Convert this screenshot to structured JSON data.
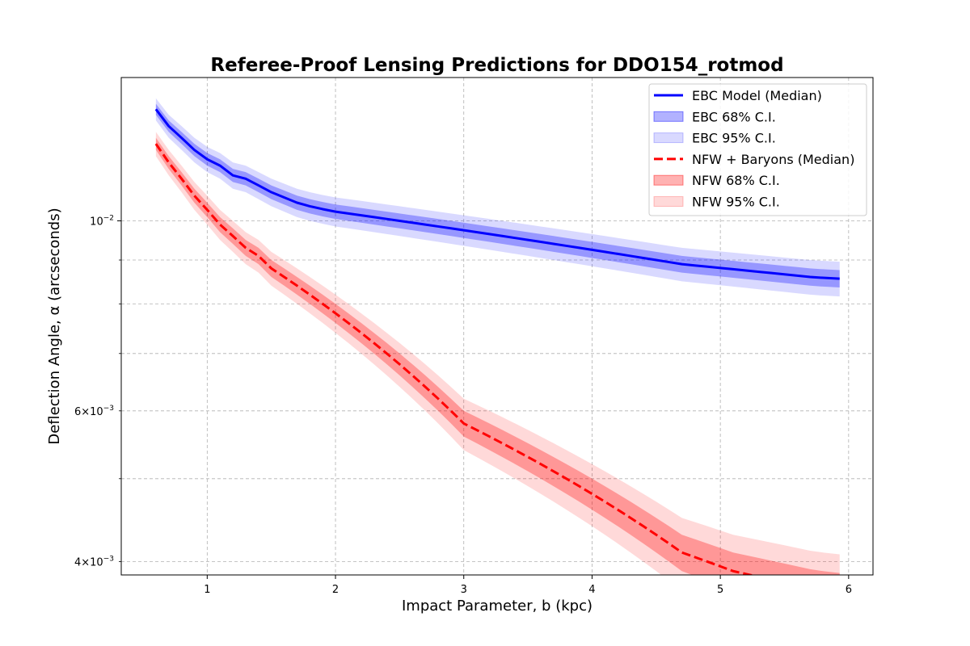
{
  "chart_data": {
    "type": "line",
    "title": "Referee-Proof Lensing Predictions for DDO154_rotmod",
    "xlabel": "Impact Parameter, b (kpc)",
    "ylabel": "Deflection Angle, α (arcseconds)",
    "xlim": [
      0.33,
      6.19
    ],
    "ylim": [
      0.00386,
      0.0147
    ],
    "yscale": "log",
    "grid": true,
    "legend_position": "upper right",
    "x_ticks": [
      1,
      2,
      3,
      4,
      5,
      6
    ],
    "x_tick_labels": [
      "1",
      "2",
      "3",
      "4",
      "5",
      "6"
    ],
    "y_major_ticks": [
      0.01
    ],
    "y_major_labels": [
      "10"
    ],
    "y_major_label_exponent": "−2",
    "y_minor_ticks": [
      0.004,
      0.005,
      0.006,
      0.007,
      0.008,
      0.009
    ],
    "y_minor_labels": [
      "4",
      "",
      "6",
      "",
      "",
      ""
    ],
    "y_minor_label_multiplier": "×10",
    "y_minor_label_exponent": "−3",
    "x": [
      0.6,
      0.7,
      0.8,
      0.9,
      1.0,
      1.1,
      1.2,
      1.3,
      1.4,
      1.5,
      1.6,
      1.7,
      1.8,
      1.9,
      2.0,
      2.1,
      2.2,
      2.3,
      2.4,
      2.5,
      2.6,
      2.7,
      2.8,
      2.9,
      3.0,
      3.1,
      3.2,
      3.3,
      3.4,
      3.5,
      3.6,
      3.7,
      3.8,
      3.9,
      4.0,
      4.1,
      4.2,
      4.3,
      4.4,
      4.5,
      4.6,
      4.7,
      4.8,
      4.9,
      5.0,
      5.1,
      5.2,
      5.3,
      5.4,
      5.5,
      5.6,
      5.7,
      5.8,
      5.93
    ],
    "series": [
      {
        "name": "EBC Model (Median)",
        "color": "#0000ff",
        "line_style": "solid",
        "band68_label": "EBC 68% C.I.",
        "band95_label": "EBC 95% C.I.",
        "band68_color": "#0000ff",
        "band95_color": "#0000ff",
        "median": [
          0.0135,
          0.0129,
          0.0125,
          0.0121,
          0.0118,
          0.0116,
          0.0113,
          0.0112,
          0.011,
          0.0108,
          0.01065,
          0.0105,
          0.0104,
          0.01032,
          0.01025,
          0.0102,
          0.01015,
          0.0101,
          0.01005,
          0.01,
          0.00995,
          0.0099,
          0.00985,
          0.0098,
          0.00975,
          0.0097,
          0.00965,
          0.0096,
          0.00955,
          0.0095,
          0.00945,
          0.0094,
          0.00935,
          0.0093,
          0.00925,
          0.0092,
          0.00915,
          0.0091,
          0.00905,
          0.009,
          0.00895,
          0.0089,
          0.00887,
          0.00884,
          0.00881,
          0.00878,
          0.00875,
          0.00872,
          0.00869,
          0.00866,
          0.00863,
          0.0086,
          0.00858,
          0.00856
        ],
        "ci68_low": [
          0.0133,
          0.0127,
          0.0123,
          0.0119,
          0.0116,
          0.0114,
          0.0111,
          0.011,
          0.0108,
          0.0106,
          0.01045,
          0.0103,
          0.0102,
          0.01012,
          0.01005,
          0.01,
          0.00995,
          0.0099,
          0.00985,
          0.0098,
          0.00975,
          0.0097,
          0.00965,
          0.0096,
          0.00955,
          0.0095,
          0.00945,
          0.0094,
          0.00935,
          0.0093,
          0.00925,
          0.0092,
          0.00915,
          0.0091,
          0.00905,
          0.009,
          0.00895,
          0.0089,
          0.00885,
          0.0088,
          0.00875,
          0.0087,
          0.00867,
          0.00864,
          0.00861,
          0.00858,
          0.00855,
          0.00852,
          0.00849,
          0.00846,
          0.00843,
          0.0084,
          0.00838,
          0.00836
        ],
        "ci68_high": [
          0.0137,
          0.0131,
          0.0127,
          0.0123,
          0.012,
          0.0118,
          0.0115,
          0.0114,
          0.0112,
          0.011,
          0.01085,
          0.0107,
          0.0106,
          0.01052,
          0.01045,
          0.0104,
          0.01035,
          0.0103,
          0.01025,
          0.0102,
          0.01015,
          0.0101,
          0.01005,
          0.01,
          0.00995,
          0.0099,
          0.00985,
          0.0098,
          0.00975,
          0.0097,
          0.00965,
          0.0096,
          0.00955,
          0.0095,
          0.00945,
          0.0094,
          0.00935,
          0.0093,
          0.00925,
          0.0092,
          0.00915,
          0.0091,
          0.00907,
          0.00904,
          0.00901,
          0.00898,
          0.00895,
          0.00892,
          0.00889,
          0.00886,
          0.00883,
          0.0088,
          0.00878,
          0.00876
        ],
        "ci95_low": [
          0.0131,
          0.0125,
          0.0121,
          0.0117,
          0.0114,
          0.0112,
          0.0109,
          0.0108,
          0.0106,
          0.0104,
          0.01025,
          0.0101,
          0.01,
          0.00992,
          0.00985,
          0.0098,
          0.00975,
          0.0097,
          0.00965,
          0.0096,
          0.00955,
          0.0095,
          0.00945,
          0.0094,
          0.00935,
          0.0093,
          0.00925,
          0.0092,
          0.00915,
          0.0091,
          0.00905,
          0.009,
          0.00895,
          0.0089,
          0.00885,
          0.0088,
          0.00875,
          0.0087,
          0.00865,
          0.0086,
          0.00855,
          0.0085,
          0.00847,
          0.00844,
          0.00841,
          0.00838,
          0.00835,
          0.00832,
          0.00829,
          0.00826,
          0.00823,
          0.0082,
          0.00818,
          0.00816
        ],
        "ci95_high": [
          0.0139,
          0.0133,
          0.0129,
          0.0125,
          0.0122,
          0.012,
          0.0117,
          0.0116,
          0.0114,
          0.0112,
          0.01105,
          0.0109,
          0.0108,
          0.01072,
          0.01065,
          0.0106,
          0.01055,
          0.0105,
          0.01045,
          0.0104,
          0.01035,
          0.0103,
          0.01025,
          0.0102,
          0.01015,
          0.0101,
          0.01005,
          0.01,
          0.00995,
          0.0099,
          0.00985,
          0.0098,
          0.00975,
          0.0097,
          0.00965,
          0.0096,
          0.00955,
          0.0095,
          0.00945,
          0.0094,
          0.00935,
          0.0093,
          0.00927,
          0.00924,
          0.00921,
          0.00918,
          0.00915,
          0.00912,
          0.00909,
          0.00906,
          0.00903,
          0.009,
          0.00898,
          0.00896
        ]
      },
      {
        "name": "NFW + Baryons (Median)",
        "color": "#ff0000",
        "line_style": "dashed",
        "band68_label": "NFW 68% C.I.",
        "band95_label": "NFW 95% C.I.",
        "band68_color": "#ff0000",
        "band95_color": "#ff0000",
        "median": [
          0.0123,
          0.0117,
          0.0112,
          0.0107,
          0.0103,
          0.0099,
          0.0096,
          0.0093,
          0.0091,
          0.0088,
          0.0086,
          0.0084,
          0.0082,
          0.008,
          0.0078,
          0.0076,
          0.0074,
          0.0072,
          0.007,
          0.0068,
          0.0066,
          0.0064,
          0.0062,
          0.006,
          0.0058,
          0.0057,
          0.0056,
          0.0055,
          0.0054,
          0.0053,
          0.0052,
          0.0051,
          0.005,
          0.0049,
          0.0048,
          0.0047,
          0.0046,
          0.0045,
          0.0044,
          0.0043,
          0.0042,
          0.0041,
          0.00405,
          0.004,
          0.00395,
          0.0039,
          0.00387,
          0.00384,
          0.00381,
          0.00378,
          0.00375,
          0.00372,
          0.0037,
          0.00368
        ],
        "ci68_low": [
          0.0121,
          0.0115,
          0.011,
          0.0105,
          0.0101,
          0.0097,
          0.0094,
          0.0091,
          0.0089,
          0.0086,
          0.0084,
          0.0082,
          0.008,
          0.0078,
          0.0076,
          0.0074,
          0.0072,
          0.007,
          0.0068,
          0.0066,
          0.0064,
          0.0062,
          0.006,
          0.0058,
          0.0056,
          0.0055,
          0.0054,
          0.0053,
          0.0052,
          0.0051,
          0.005,
          0.0049,
          0.0048,
          0.0047,
          0.0046,
          0.0045,
          0.0044,
          0.0043,
          0.0042,
          0.0041,
          0.004,
          0.0039,
          0.00385,
          0.0038,
          0.00375,
          0.0037,
          0.00367,
          0.00364,
          0.00361,
          0.00358,
          0.00355,
          0.00352,
          0.0035,
          0.00348
        ],
        "ci68_high": [
          0.0125,
          0.0119,
          0.0114,
          0.0109,
          0.0105,
          0.0101,
          0.0098,
          0.0095,
          0.0093,
          0.009,
          0.0088,
          0.0086,
          0.0084,
          0.0082,
          0.008,
          0.0078,
          0.0076,
          0.0074,
          0.0072,
          0.007,
          0.0068,
          0.0066,
          0.0064,
          0.0062,
          0.006,
          0.0059,
          0.0058,
          0.0057,
          0.0056,
          0.0055,
          0.0054,
          0.0053,
          0.0052,
          0.0051,
          0.005,
          0.0049,
          0.0048,
          0.0047,
          0.0046,
          0.0045,
          0.0044,
          0.0043,
          0.00425,
          0.0042,
          0.00415,
          0.0041,
          0.00407,
          0.00404,
          0.00401,
          0.00398,
          0.00395,
          0.00392,
          0.0039,
          0.00388
        ],
        "ci95_low": [
          0.0119,
          0.0113,
          0.0108,
          0.0103,
          0.0099,
          0.0095,
          0.0092,
          0.0089,
          0.0087,
          0.0084,
          0.0082,
          0.008,
          0.0078,
          0.0076,
          0.0074,
          0.0072,
          0.007,
          0.0068,
          0.0066,
          0.0064,
          0.0062,
          0.006,
          0.0058,
          0.0056,
          0.0054,
          0.0053,
          0.0052,
          0.0051,
          0.005,
          0.0049,
          0.0048,
          0.0047,
          0.0046,
          0.0045,
          0.0044,
          0.0043,
          0.0042,
          0.0041,
          0.004,
          0.0039,
          0.0038,
          0.0037,
          0.00365,
          0.0036,
          0.00355,
          0.0035,
          0.00347,
          0.00344,
          0.00341,
          0.00338,
          0.00335,
          0.00332,
          0.0033,
          0.00328
        ],
        "ci95_high": [
          0.0127,
          0.0121,
          0.0116,
          0.0111,
          0.0107,
          0.0103,
          0.01,
          0.0097,
          0.0095,
          0.0092,
          0.009,
          0.0088,
          0.0086,
          0.0084,
          0.0082,
          0.008,
          0.0078,
          0.0076,
          0.0074,
          0.0072,
          0.007,
          0.0068,
          0.0066,
          0.0064,
          0.0062,
          0.0061,
          0.006,
          0.0059,
          0.0058,
          0.0057,
          0.0056,
          0.0055,
          0.0054,
          0.0053,
          0.0052,
          0.0051,
          0.005,
          0.0049,
          0.0048,
          0.0047,
          0.0046,
          0.0045,
          0.00445,
          0.0044,
          0.00435,
          0.0043,
          0.00427,
          0.00424,
          0.00421,
          0.00418,
          0.00415,
          0.00412,
          0.0041,
          0.00408
        ]
      }
    ],
    "legend": [
      {
        "label": "EBC Model (Median)",
        "kind": "line",
        "color": "#0000ff",
        "style": "solid"
      },
      {
        "label": "EBC 68% C.I.",
        "kind": "band",
        "color": "#0000ff",
        "opacity": 0.3
      },
      {
        "label": "EBC 95% C.I.",
        "kind": "band",
        "color": "#0000ff",
        "opacity": 0.15
      },
      {
        "label": "NFW + Baryons (Median)",
        "kind": "line",
        "color": "#ff0000",
        "style": "dashed"
      },
      {
        "label": "NFW 68% C.I.",
        "kind": "band",
        "color": "#ff0000",
        "opacity": 0.3
      },
      {
        "label": "NFW 95% C.I.",
        "kind": "band",
        "color": "#ff0000",
        "opacity": 0.15
      }
    ]
  }
}
